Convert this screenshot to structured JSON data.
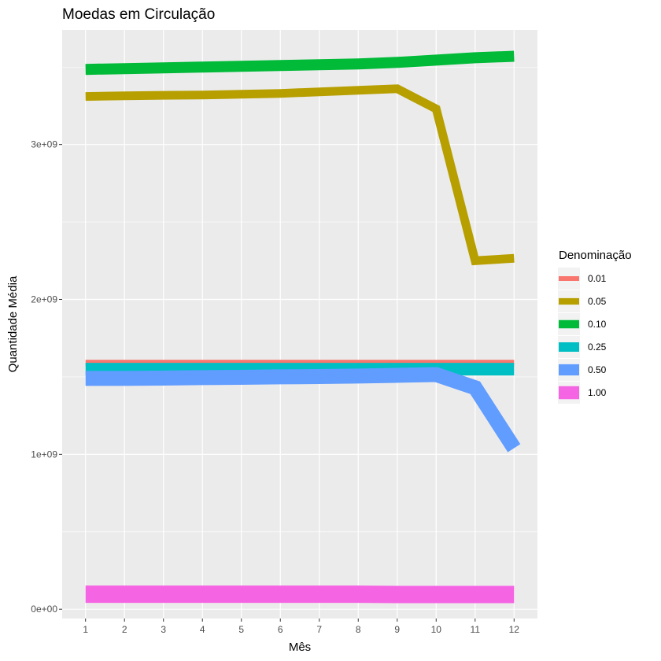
{
  "chart_data": {
    "type": "line",
    "title": "Moedas em Circulação",
    "xlabel": "Mês",
    "ylabel": "Quantidade Média",
    "x": [
      1,
      2,
      3,
      4,
      5,
      6,
      7,
      8,
      9,
      10,
      11,
      12
    ],
    "x_tick_labels": [
      "1",
      "2",
      "3",
      "4",
      "5",
      "6",
      "7",
      "8",
      "9",
      "10",
      "11",
      "12"
    ],
    "xlim": [
      0.4,
      12.6
    ],
    "ylim": [
      -60000000,
      3740000000
    ],
    "y_ticks": [
      0,
      1000000000,
      2000000000,
      3000000000
    ],
    "y_tick_labels": [
      "0e+00",
      "1e+09",
      "2e+09",
      "3e+09"
    ],
    "grid": true,
    "legend_placement": "right",
    "legend_title": "Denominação",
    "series": [
      {
        "name": "0.01",
        "color": "#F8766D",
        "line_width": 8,
        "values": [
          1590000000,
          1590000000,
          1590000000,
          1590000000,
          1590000000,
          1590000000,
          1590000000,
          1590000000,
          1590000000,
          1590000000,
          1590000000,
          1590000000
        ]
      },
      {
        "name": "0.05",
        "color": "#B79F00",
        "line_width": 11,
        "values": [
          3310000000,
          3315000000,
          3318000000,
          3320000000,
          3325000000,
          3330000000,
          3340000000,
          3350000000,
          3360000000,
          3230000000,
          2250000000,
          2265000000
        ]
      },
      {
        "name": "0.10",
        "color": "#00BA38",
        "line_width": 14,
        "values": [
          3485000000,
          3490000000,
          3495000000,
          3500000000,
          3505000000,
          3510000000,
          3515000000,
          3520000000,
          3530000000,
          3545000000,
          3560000000,
          3570000000
        ]
      },
      {
        "name": "0.25",
        "color": "#00BFC4",
        "line_width": 16,
        "values": [
          1550000000,
          1550000000,
          1550000000,
          1550000000,
          1550000000,
          1550000000,
          1550000000,
          1550000000,
          1550000000,
          1550000000,
          1550000000,
          1550000000
        ]
      },
      {
        "name": "0.50",
        "color": "#619CFF",
        "line_width": 19,
        "values": [
          1490000000,
          1490000000,
          1492000000,
          1495000000,
          1497000000,
          1500000000,
          1502000000,
          1505000000,
          1510000000,
          1515000000,
          1430000000,
          1040000000
        ]
      },
      {
        "name": "1.00",
        "color": "#F564E3",
        "line_width": 22,
        "values": [
          97000000,
          97000000,
          97000000,
          97000000,
          97000000,
          97000000,
          97000000,
          97000000,
          95000000,
          95000000,
          95000000,
          95000000
        ]
      }
    ]
  }
}
